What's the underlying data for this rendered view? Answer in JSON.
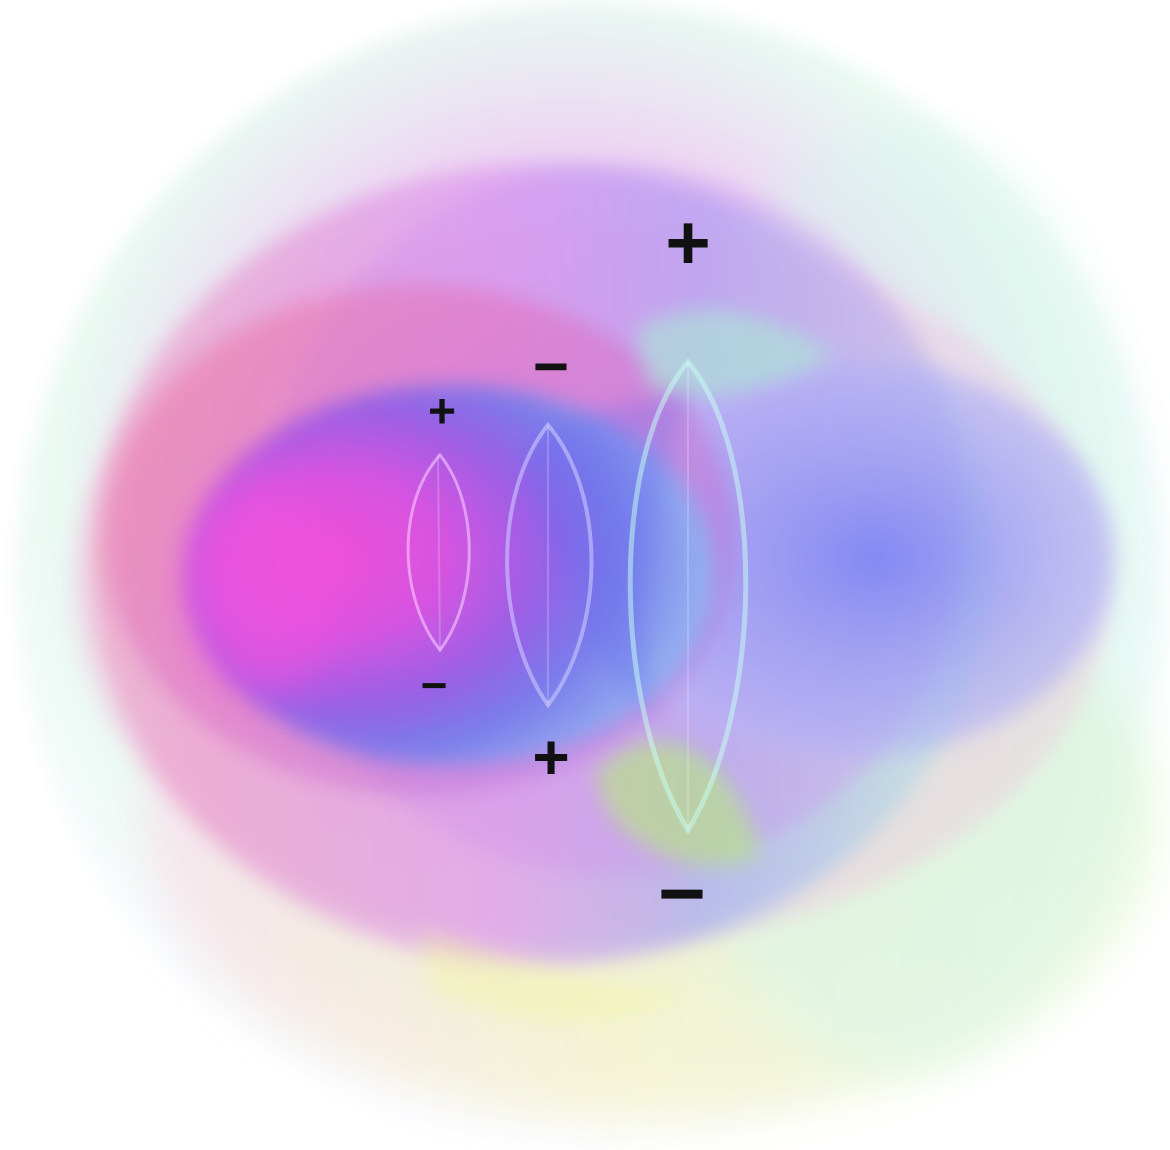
{
  "figure": {
    "colors": {
      "magenta": "#e64fd8",
      "red": "#e05a78",
      "violet": "#8b5cf0",
      "blue": "#6a74f2",
      "cyan": "#8fe0e8",
      "green": "#a8ee9a",
      "yellow": "#f0f3a8",
      "pink": "#f2c6e0",
      "lavender": "#d7c6f4"
    },
    "charges": [
      {
        "id": "plus-large-top",
        "symbol": "+"
      },
      {
        "id": "minus-upper-middle",
        "symbol": "−"
      },
      {
        "id": "plus-small-upper-left",
        "symbol": "+"
      },
      {
        "id": "minus-small-lower-left",
        "symbol": "−"
      },
      {
        "id": "plus-lower-middle",
        "symbol": "+"
      },
      {
        "id": "minus-large-bottom",
        "symbol": "−"
      }
    ]
  }
}
